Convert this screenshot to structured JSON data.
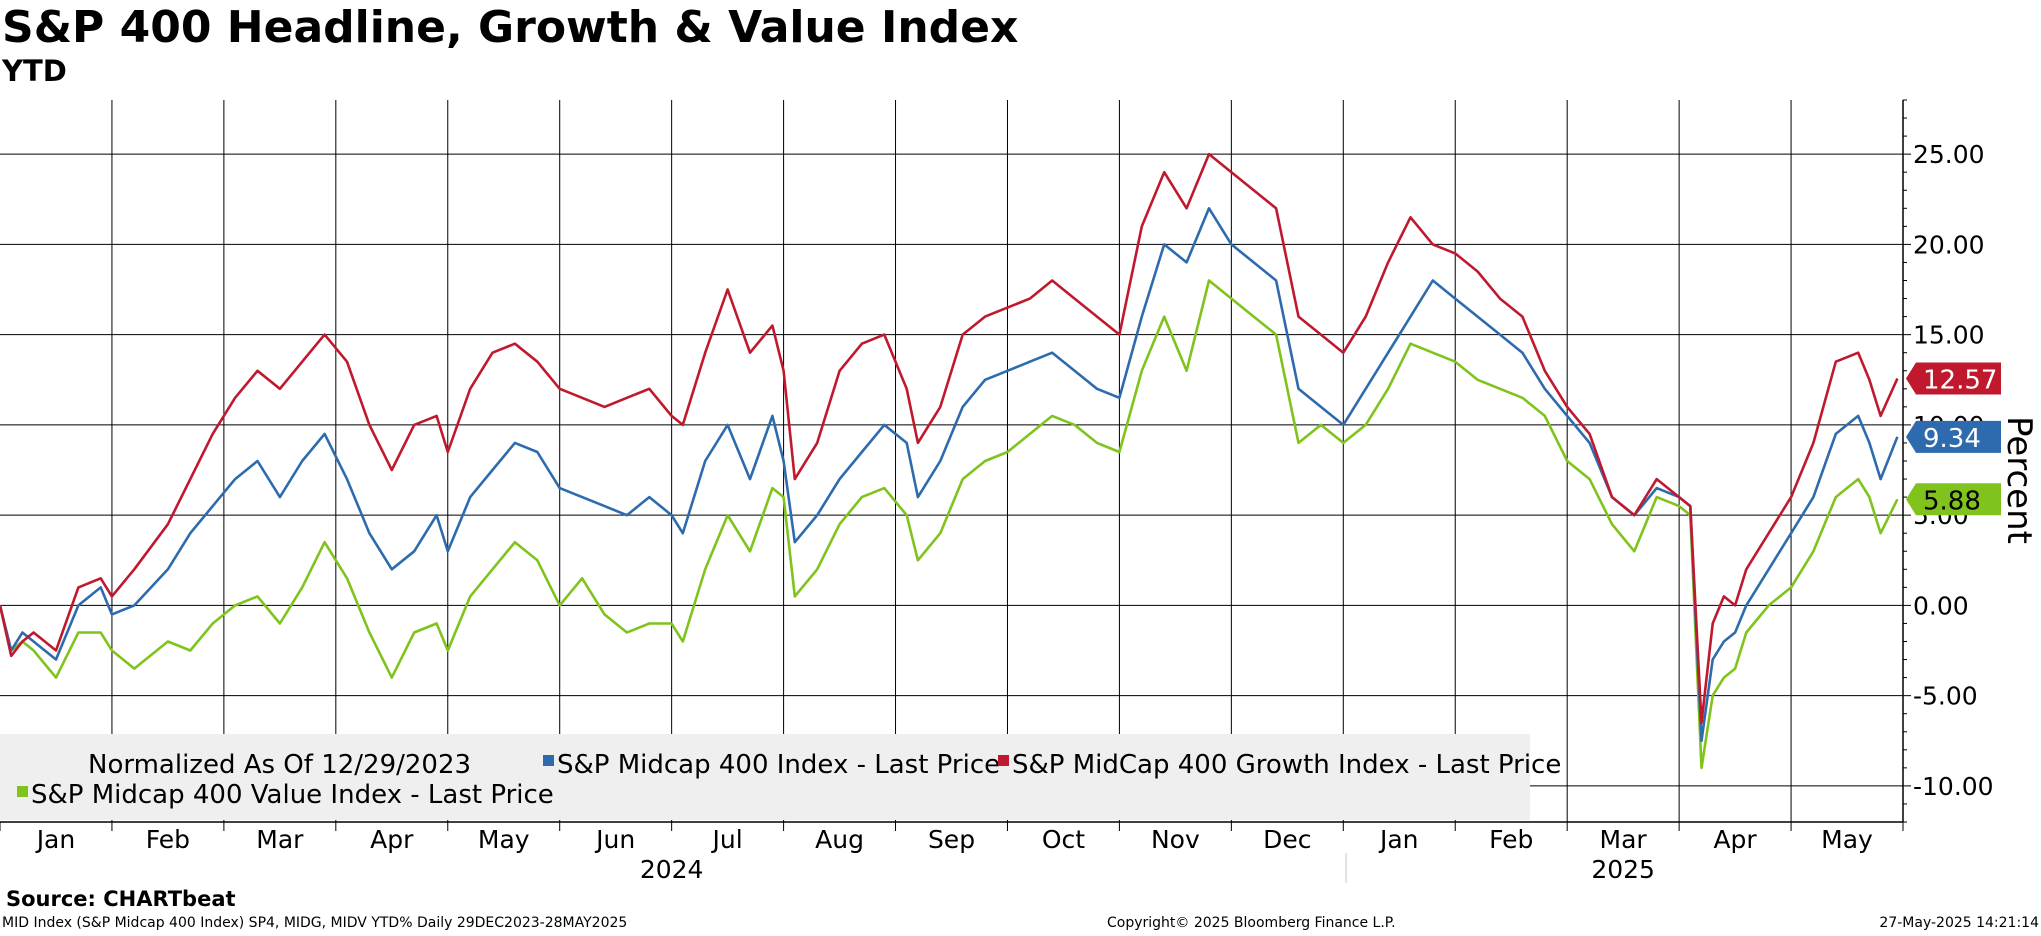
{
  "title": "S&P 400 Headline, Growth & Value Index",
  "subtitle": "YTD",
  "source": "Source: CHARTbeat",
  "footer": {
    "left": "MID Index (S&P Midcap 400 Index) SP4, MIDG, MIDV YTD% Daily 29DEC2023-28MAY2025",
    "center": "Copyright© 2025 Bloomberg Finance L.P.",
    "right": "27-May-2025 14:21:14"
  },
  "chart_data": {
    "type": "line",
    "title": "S&P 400 Headline, Growth & Value Index",
    "subtitle": "YTD",
    "ylabel": "Percent",
    "ylim": [
      -12,
      28
    ],
    "yticks": [
      -10,
      -5,
      0,
      5,
      10,
      15,
      20,
      25
    ],
    "ytick_labels": [
      "-10.00",
      "-5.00",
      "0.00",
      "5.00",
      "10.00",
      "15.00",
      "20.00",
      "25.00"
    ],
    "xlim": [
      0,
      17
    ],
    "month_labels": [
      "Jan",
      "Feb",
      "Mar",
      "Apr",
      "May",
      "Jun",
      "Jul",
      "Aug",
      "Sep",
      "Oct",
      "Nov",
      "Dec",
      "Jan",
      "Feb",
      "Mar",
      "Apr",
      "May"
    ],
    "year_labels": [
      {
        "label": "2024",
        "center": 6
      },
      {
        "label": "2025",
        "center": 14.5
      }
    ],
    "legend": {
      "header": "Normalized As Of 12/29/2023",
      "position": "bottom-left"
    },
    "grid": true,
    "series": [
      {
        "name": "S&P Midcap 400 Index - Last Price",
        "color": "#2e6bae",
        "last_value": "9.34",
        "points": [
          [
            0,
            0
          ],
          [
            0.1,
            -2.5
          ],
          [
            0.2,
            -1.5
          ],
          [
            0.3,
            -2
          ],
          [
            0.5,
            -3
          ],
          [
            0.7,
            0
          ],
          [
            0.9,
            1
          ],
          [
            1.0,
            -0.5
          ],
          [
            1.2,
            0
          ],
          [
            1.5,
            2
          ],
          [
            1.7,
            4
          ],
          [
            1.9,
            5.5
          ],
          [
            2.1,
            7
          ],
          [
            2.3,
            8
          ],
          [
            2.5,
            6
          ],
          [
            2.7,
            8
          ],
          [
            2.9,
            9.5
          ],
          [
            3.1,
            7
          ],
          [
            3.3,
            4
          ],
          [
            3.5,
            2
          ],
          [
            3.7,
            3
          ],
          [
            3.9,
            5
          ],
          [
            4.0,
            3
          ],
          [
            4.2,
            6
          ],
          [
            4.4,
            7.5
          ],
          [
            4.6,
            9
          ],
          [
            4.8,
            8.5
          ],
          [
            5.0,
            6.5
          ],
          [
            5.2,
            6
          ],
          [
            5.4,
            5.5
          ],
          [
            5.6,
            5
          ],
          [
            5.8,
            6
          ],
          [
            6.0,
            5
          ],
          [
            6.1,
            4
          ],
          [
            6.3,
            8
          ],
          [
            6.5,
            10
          ],
          [
            6.7,
            7
          ],
          [
            6.9,
            10.5
          ],
          [
            7.0,
            8
          ],
          [
            7.1,
            3.5
          ],
          [
            7.3,
            5
          ],
          [
            7.5,
            7
          ],
          [
            7.7,
            8.5
          ],
          [
            7.9,
            10
          ],
          [
            8.1,
            9
          ],
          [
            8.2,
            6
          ],
          [
            8.4,
            8
          ],
          [
            8.6,
            11
          ],
          [
            8.8,
            12.5
          ],
          [
            9.0,
            13
          ],
          [
            9.2,
            13.5
          ],
          [
            9.4,
            14
          ],
          [
            9.6,
            13
          ],
          [
            9.8,
            12
          ],
          [
            10.0,
            11.5
          ],
          [
            10.2,
            16
          ],
          [
            10.4,
            20
          ],
          [
            10.6,
            19
          ],
          [
            10.8,
            22
          ],
          [
            11.0,
            20
          ],
          [
            11.2,
            19
          ],
          [
            11.4,
            18
          ],
          [
            11.6,
            12
          ],
          [
            11.8,
            11
          ],
          [
            12.0,
            10
          ],
          [
            12.2,
            12
          ],
          [
            12.4,
            14
          ],
          [
            12.6,
            16
          ],
          [
            12.8,
            18
          ],
          [
            13.0,
            17
          ],
          [
            13.2,
            16
          ],
          [
            13.4,
            15
          ],
          [
            13.6,
            14
          ],
          [
            13.8,
            12
          ],
          [
            14.0,
            10.5
          ],
          [
            14.2,
            9
          ],
          [
            14.4,
            6
          ],
          [
            14.6,
            5
          ],
          [
            14.8,
            6.5
          ],
          [
            15.0,
            6
          ],
          [
            15.1,
            5.5
          ],
          [
            15.2,
            -7.5
          ],
          [
            15.3,
            -3
          ],
          [
            15.4,
            -2
          ],
          [
            15.5,
            -1.5
          ],
          [
            15.6,
            0
          ],
          [
            15.8,
            2
          ],
          [
            16.0,
            4
          ],
          [
            16.2,
            6
          ],
          [
            16.4,
            9.5
          ],
          [
            16.6,
            10.5
          ],
          [
            16.7,
            9
          ],
          [
            16.8,
            7
          ],
          [
            16.95,
            9.34
          ]
        ]
      },
      {
        "name": "S&P MidCap 400 Growth Index - Last Price",
        "color": "#c0192e",
        "last_value": "12.57",
        "points": [
          [
            0,
            0
          ],
          [
            0.1,
            -2.8
          ],
          [
            0.2,
            -2
          ],
          [
            0.3,
            -1.5
          ],
          [
            0.5,
            -2.5
          ],
          [
            0.7,
            1
          ],
          [
            0.9,
            1.5
          ],
          [
            1.0,
            0.5
          ],
          [
            1.2,
            2
          ],
          [
            1.5,
            4.5
          ],
          [
            1.7,
            7
          ],
          [
            1.9,
            9.5
          ],
          [
            2.1,
            11.5
          ],
          [
            2.3,
            13
          ],
          [
            2.5,
            12
          ],
          [
            2.7,
            13.5
          ],
          [
            2.9,
            15
          ],
          [
            3.1,
            13.5
          ],
          [
            3.3,
            10
          ],
          [
            3.5,
            7.5
          ],
          [
            3.7,
            10
          ],
          [
            3.9,
            10.5
          ],
          [
            4.0,
            8.5
          ],
          [
            4.2,
            12
          ],
          [
            4.4,
            14
          ],
          [
            4.6,
            14.5
          ],
          [
            4.8,
            13.5
          ],
          [
            5.0,
            12
          ],
          [
            5.2,
            11.5
          ],
          [
            5.4,
            11
          ],
          [
            5.6,
            11.5
          ],
          [
            5.8,
            12
          ],
          [
            6.0,
            10.5
          ],
          [
            6.1,
            10
          ],
          [
            6.3,
            14
          ],
          [
            6.5,
            17.5
          ],
          [
            6.7,
            14
          ],
          [
            6.9,
            15.5
          ],
          [
            7.0,
            13
          ],
          [
            7.1,
            7
          ],
          [
            7.3,
            9
          ],
          [
            7.5,
            13
          ],
          [
            7.7,
            14.5
          ],
          [
            7.9,
            15
          ],
          [
            8.1,
            12
          ],
          [
            8.2,
            9
          ],
          [
            8.4,
            11
          ],
          [
            8.6,
            15
          ],
          [
            8.8,
            16
          ],
          [
            9.0,
            16.5
          ],
          [
            9.2,
            17
          ],
          [
            9.4,
            18
          ],
          [
            9.6,
            17
          ],
          [
            9.8,
            16
          ],
          [
            10.0,
            15
          ],
          [
            10.2,
            21
          ],
          [
            10.4,
            24
          ],
          [
            10.6,
            22
          ],
          [
            10.8,
            25
          ],
          [
            11.0,
            24
          ],
          [
            11.2,
            23
          ],
          [
            11.4,
            22
          ],
          [
            11.6,
            16
          ],
          [
            11.8,
            15
          ],
          [
            12.0,
            14
          ],
          [
            12.2,
            16
          ],
          [
            12.4,
            19
          ],
          [
            12.6,
            21.5
          ],
          [
            12.8,
            20
          ],
          [
            13.0,
            19.5
          ],
          [
            13.2,
            18.5
          ],
          [
            13.4,
            17
          ],
          [
            13.6,
            16
          ],
          [
            13.8,
            13
          ],
          [
            14.0,
            11
          ],
          [
            14.2,
            9.5
          ],
          [
            14.4,
            6
          ],
          [
            14.6,
            5
          ],
          [
            14.8,
            7
          ],
          [
            15.0,
            6
          ],
          [
            15.1,
            5.5
          ],
          [
            15.2,
            -6.5
          ],
          [
            15.3,
            -1
          ],
          [
            15.4,
            0.5
          ],
          [
            15.5,
            0
          ],
          [
            15.6,
            2
          ],
          [
            15.8,
            4
          ],
          [
            16.0,
            6
          ],
          [
            16.2,
            9
          ],
          [
            16.4,
            13.5
          ],
          [
            16.6,
            14
          ],
          [
            16.7,
            12.5
          ],
          [
            16.8,
            10.5
          ],
          [
            16.95,
            12.57
          ]
        ]
      },
      {
        "name": "S&P Midcap 400 Value Index - Last Price",
        "color": "#7fc31c",
        "last_value": "5.88",
        "points": [
          [
            0,
            0
          ],
          [
            0.1,
            -2.5
          ],
          [
            0.2,
            -2
          ],
          [
            0.3,
            -2.5
          ],
          [
            0.5,
            -4
          ],
          [
            0.7,
            -1.5
          ],
          [
            0.9,
            -1.5
          ],
          [
            1.0,
            -2.5
          ],
          [
            1.2,
            -3.5
          ],
          [
            1.5,
            -2
          ],
          [
            1.7,
            -2.5
          ],
          [
            1.9,
            -1
          ],
          [
            2.1,
            0
          ],
          [
            2.3,
            0.5
          ],
          [
            2.5,
            -1
          ],
          [
            2.7,
            1
          ],
          [
            2.9,
            3.5
          ],
          [
            3.1,
            1.5
          ],
          [
            3.3,
            -1.5
          ],
          [
            3.5,
            -4
          ],
          [
            3.7,
            -1.5
          ],
          [
            3.9,
            -1
          ],
          [
            4.0,
            -2.5
          ],
          [
            4.2,
            0.5
          ],
          [
            4.4,
            2
          ],
          [
            4.6,
            3.5
          ],
          [
            4.8,
            2.5
          ],
          [
            5.0,
            0
          ],
          [
            5.2,
            1.5
          ],
          [
            5.4,
            -0.5
          ],
          [
            5.6,
            -1.5
          ],
          [
            5.8,
            -1
          ],
          [
            6.0,
            -1
          ],
          [
            6.1,
            -2
          ],
          [
            6.3,
            2
          ],
          [
            6.5,
            5
          ],
          [
            6.7,
            3
          ],
          [
            6.9,
            6.5
          ],
          [
            7.0,
            6
          ],
          [
            7.1,
            0.5
          ],
          [
            7.3,
            2
          ],
          [
            7.5,
            4.5
          ],
          [
            7.7,
            6
          ],
          [
            7.9,
            6.5
          ],
          [
            8.1,
            5
          ],
          [
            8.2,
            2.5
          ],
          [
            8.4,
            4
          ],
          [
            8.6,
            7
          ],
          [
            8.8,
            8
          ],
          [
            9.0,
            8.5
          ],
          [
            9.2,
            9.5
          ],
          [
            9.4,
            10.5
          ],
          [
            9.6,
            10
          ],
          [
            9.8,
            9
          ],
          [
            10.0,
            8.5
          ],
          [
            10.2,
            13
          ],
          [
            10.4,
            16
          ],
          [
            10.6,
            13
          ],
          [
            10.8,
            18
          ],
          [
            11.0,
            17
          ],
          [
            11.2,
            16
          ],
          [
            11.4,
            15
          ],
          [
            11.6,
            9
          ],
          [
            11.8,
            10
          ],
          [
            12.0,
            9
          ],
          [
            12.2,
            10
          ],
          [
            12.4,
            12
          ],
          [
            12.6,
            14.5
          ],
          [
            12.8,
            14
          ],
          [
            13.0,
            13.5
          ],
          [
            13.2,
            12.5
          ],
          [
            13.4,
            12
          ],
          [
            13.6,
            11.5
          ],
          [
            13.8,
            10.5
          ],
          [
            14.0,
            8
          ],
          [
            14.2,
            7
          ],
          [
            14.4,
            4.5
          ],
          [
            14.6,
            3
          ],
          [
            14.8,
            6
          ],
          [
            15.0,
            5.5
          ],
          [
            15.1,
            5
          ],
          [
            15.2,
            -9
          ],
          [
            15.3,
            -5
          ],
          [
            15.4,
            -4
          ],
          [
            15.5,
            -3.5
          ],
          [
            15.6,
            -1.5
          ],
          [
            15.8,
            0
          ],
          [
            16.0,
            1
          ],
          [
            16.2,
            3
          ],
          [
            16.4,
            6
          ],
          [
            16.6,
            7
          ],
          [
            16.7,
            6
          ],
          [
            16.8,
            4
          ],
          [
            16.95,
            5.88
          ]
        ]
      }
    ]
  }
}
